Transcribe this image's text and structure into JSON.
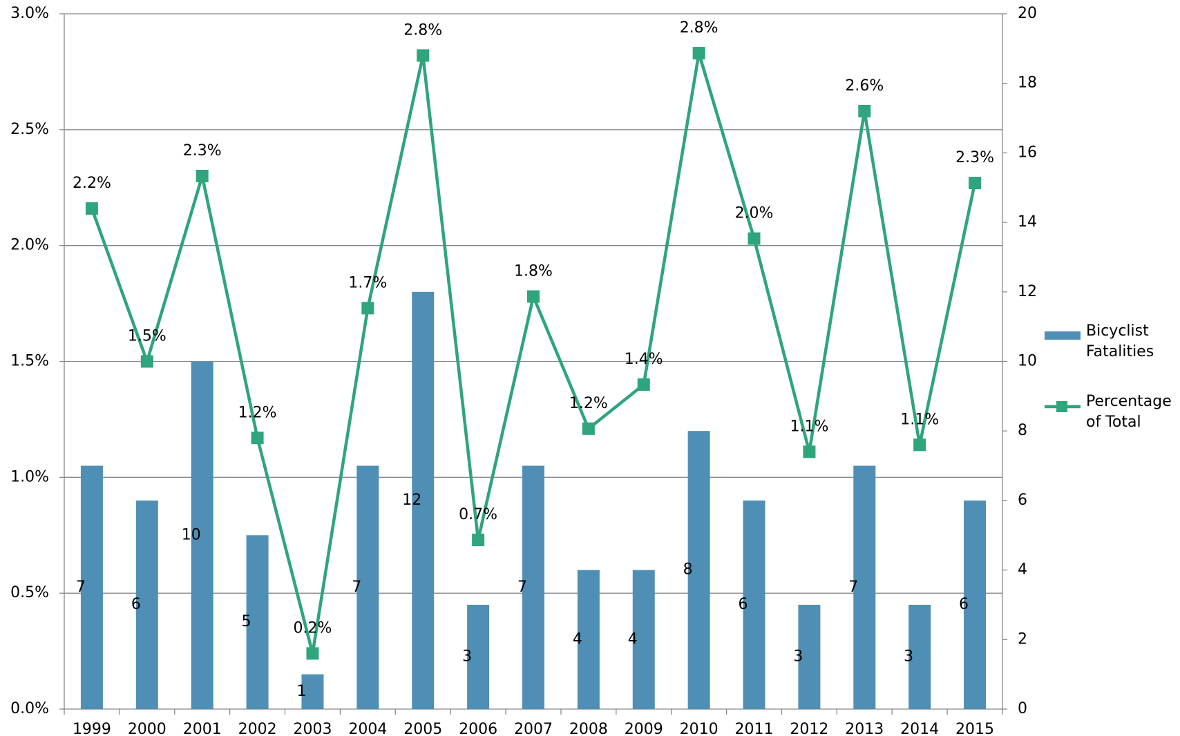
{
  "chart_data": {
    "type": "bar-line",
    "categories": [
      "1999",
      "2000",
      "2001",
      "2002",
      "2003",
      "2004",
      "2005",
      "2006",
      "2007",
      "2008",
      "2009",
      "2010",
      "2011",
      "2012",
      "2013",
      "2014",
      "2015"
    ],
    "series": [
      {
        "name": "Bicyclist Fatalities",
        "type": "bar",
        "axis": "y2",
        "color": "#4f8fb5",
        "values": [
          7,
          6,
          10,
          5,
          1,
          7,
          12,
          3,
          7,
          4,
          4,
          8,
          6,
          3,
          7,
          3,
          6
        ]
      },
      {
        "name": "Percentage of Total",
        "type": "line",
        "axis": "y",
        "color": "#2ea57a",
        "values": [
          2.16,
          1.5,
          2.3,
          1.17,
          0.24,
          1.73,
          2.82,
          0.73,
          1.78,
          1.21,
          1.4,
          2.83,
          2.03,
          1.11,
          2.58,
          1.14,
          2.27
        ],
        "value_labels": [
          "2.2%",
          "1.5%",
          "2.3%",
          "1.2%",
          "0.2%",
          "1.7%",
          "2.8%",
          "0.7%",
          "1.8%",
          "1.2%",
          "1.4%",
          "2.8%",
          "2.0%",
          "1.1%",
          "2.6%",
          "1.1%",
          "2.3%"
        ]
      }
    ],
    "ylim": [
      0,
      3
    ],
    "yticks": [
      {
        "value": 0,
        "label": "0.0%"
      },
      {
        "value": 0.5,
        "label": "0.5%"
      },
      {
        "value": 1,
        "label": "1.0%"
      },
      {
        "value": 1.5,
        "label": "1.5%"
      },
      {
        "value": 2,
        "label": "2.0%"
      },
      {
        "value": 2.5,
        "label": "2.5%"
      },
      {
        "value": 3,
        "label": "3.0%"
      }
    ],
    "y2lim": [
      0,
      20
    ],
    "y2ticks": [
      0,
      2,
      4,
      6,
      8,
      10,
      12,
      14,
      16,
      18,
      20
    ],
    "grid": true,
    "legend": "right"
  }
}
